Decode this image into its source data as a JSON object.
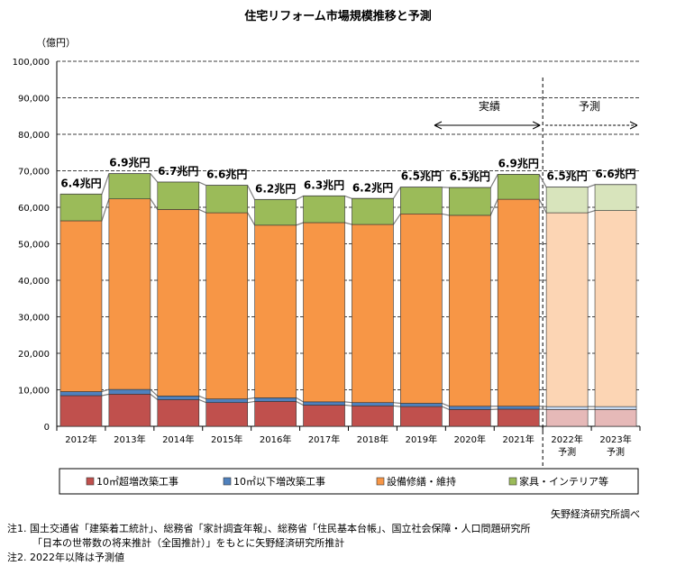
{
  "chart_data": {
    "type": "bar",
    "stacked": true,
    "title": "住宅リフォーム市場規模推移と予測",
    "unit_label": "（億円）",
    "ylim": [
      0,
      100000
    ],
    "yticks": [
      "0",
      "10,000",
      "20,000",
      "30,000",
      "40,000",
      "50,000",
      "60,000",
      "70,000",
      "80,000",
      "90,000",
      "100,000"
    ],
    "categories": [
      "2012年",
      "2013年",
      "2014年",
      "2015年",
      "2016年",
      "2017年",
      "2018年",
      "2019年",
      "2020年",
      "2021年",
      "2022年",
      "2023年"
    ],
    "category_sub": [
      "",
      "",
      "",
      "",
      "",
      "",
      "",
      "",
      "",
      "",
      "予測",
      "予測"
    ],
    "forecast_from_index": 10,
    "series": [
      {
        "name": "10㎡超増改築工事",
        "color": "#C0504D",
        "forecast_color": "#E6B9B8",
        "values": [
          8400,
          8800,
          7300,
          6500,
          6800,
          5800,
          5600,
          5400,
          4600,
          4700,
          4600,
          4600
        ]
      },
      {
        "name": "10㎡以下増改築工事",
        "color": "#4F81BD",
        "forecast_color": "#C5D9F1",
        "values": [
          1100,
          1300,
          1000,
          1000,
          1000,
          900,
          900,
          900,
          900,
          800,
          800,
          800
        ]
      },
      {
        "name": "設備修繕・維持",
        "color": "#F79646",
        "forecast_color": "#FCD5B4",
        "values": [
          46800,
          52200,
          51100,
          51000,
          47300,
          49100,
          48800,
          51900,
          52300,
          56700,
          53100,
          53700
        ]
      },
      {
        "name": "家具・インテリア等",
        "color": "#9BBB59",
        "forecast_color": "#D8E4BC",
        "values": [
          7300,
          6900,
          7500,
          7500,
          7000,
          7300,
          7100,
          7300,
          7600,
          6800,
          7000,
          7100
        ]
      }
    ],
    "totals": [
      "6.4兆円",
      "6.9兆円",
      "6.7兆円",
      "6.6兆円",
      "6.2兆円",
      "6.3兆円",
      "6.2兆円",
      "6.5兆円",
      "6.5兆円",
      "6.9兆円",
      "6.5兆円",
      "6.6兆円"
    ],
    "annotation_actual": "実績",
    "annotation_forecast": "予測",
    "legend_position": "bottom"
  },
  "source": "矢野経済研究所調べ",
  "notes": [
    "注1. 国土交通省「建築着工統計」、総務省「家計調査年報」、総務省「住民基本台帳」、国立社会保障・人口問題研究所",
    "「日本の世帯数の将来推計（全国推計）」をもとに矢野経済研究所推計",
    "注2. 2022年以降は予測値"
  ]
}
